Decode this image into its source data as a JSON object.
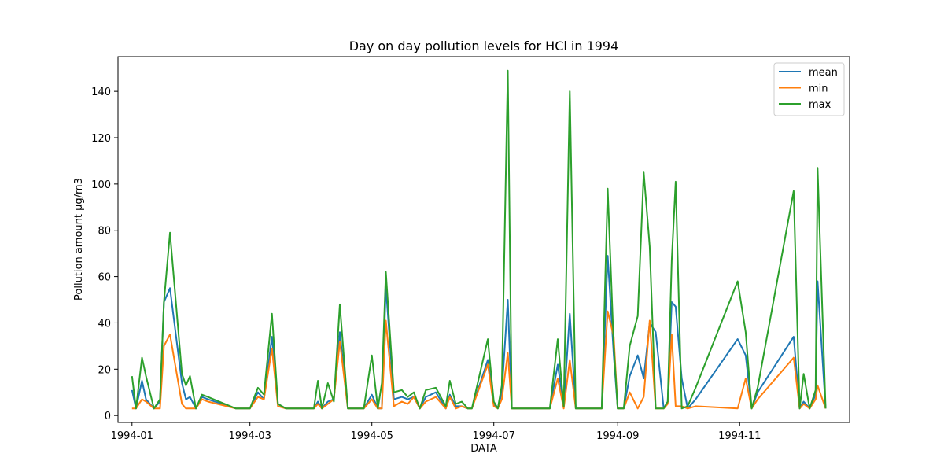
{
  "chart_data": {
    "type": "line",
    "title": "Day on day pollution levels for HCl in 1994",
    "xlabel": "DATA",
    "ylabel": "Pollution amount μg/m3",
    "ylim": [
      -3,
      155
    ],
    "xlim": [
      "1993-12-25",
      "1994-12-26"
    ],
    "x_ticks": [
      "1994-01",
      "1994-03",
      "1994-05",
      "1994-07",
      "1994-09",
      "1994-11"
    ],
    "y_ticks": [
      0,
      20,
      40,
      60,
      80,
      100,
      120,
      140
    ],
    "grid": false,
    "legend": "top-right",
    "x": [
      "1994-01-01",
      "1994-01-03",
      "1994-01-06",
      "1994-01-08",
      "1994-01-12",
      "1994-01-15",
      "1994-01-17",
      "1994-01-20",
      "1994-01-26",
      "1994-01-28",
      "1994-01-30",
      "1994-02-02",
      "1994-02-05",
      "1994-02-08",
      "1994-02-22",
      "1994-03-01",
      "1994-03-05",
      "1994-03-08",
      "1994-03-12",
      "1994-03-15",
      "1994-03-19",
      "1994-04-02",
      "1994-04-04",
      "1994-04-06",
      "1994-04-09",
      "1994-04-12",
      "1994-04-15",
      "1994-04-19",
      "1994-04-23",
      "1994-04-27",
      "1994-05-01",
      "1994-05-04",
      "1994-05-06",
      "1994-05-08",
      "1994-05-12",
      "1994-05-16",
      "1994-05-19",
      "1994-05-22",
      "1994-05-25",
      "1994-05-28",
      "1994-06-02",
      "1994-06-07",
      "1994-06-09",
      "1994-06-12",
      "1994-06-15",
      "1994-06-18",
      "1994-06-20",
      "1994-06-28",
      "1994-07-01",
      "1994-07-03",
      "1994-07-05",
      "1994-07-08",
      "1994-07-10",
      "1994-07-12",
      "1994-07-20",
      "1994-07-23",
      "1994-07-29",
      "1994-08-02",
      "1994-08-05",
      "1994-08-08",
      "1994-08-11",
      "1994-08-15",
      "1994-08-24",
      "1994-08-27",
      "1994-08-30",
      "1994-09-01",
      "1994-09-04",
      "1994-09-07",
      "1994-09-11",
      "1994-09-14",
      "1994-09-17",
      "1994-09-20",
      "1994-09-24",
      "1994-09-26",
      "1994-09-28",
      "1994-09-30",
      "1994-10-03",
      "1994-10-06",
      "1994-10-10",
      "1994-10-31",
      "1994-11-04",
      "1994-11-07",
      "1994-11-10",
      "1994-11-28",
      "1994-12-01",
      "1994-12-03",
      "1994-12-06",
      "1994-12-09",
      "1994-12-10",
      "1994-12-14"
    ],
    "series": [
      {
        "name": "mean",
        "color": "#1f77b4",
        "values": [
          11,
          3,
          15,
          7,
          3,
          6,
          49,
          55,
          14,
          7,
          8,
          3,
          8,
          7,
          3,
          3,
          10,
          7,
          34,
          5,
          3,
          3,
          6,
          3,
          6,
          7,
          36,
          3,
          3,
          3,
          9,
          3,
          3,
          56,
          7,
          8,
          7,
          8,
          3,
          8,
          10,
          3,
          9,
          4,
          4,
          3,
          3,
          24,
          5,
          3,
          10,
          50,
          3,
          3,
          3,
          3,
          3,
          22,
          4,
          44,
          3,
          3,
          3,
          69,
          26,
          3,
          3,
          17,
          26,
          16,
          40,
          36,
          3,
          6,
          49,
          47,
          16,
          3,
          7,
          33,
          26,
          3,
          10,
          34,
          3,
          6,
          3,
          9,
          58,
          3
        ]
      },
      {
        "name": "min",
        "color": "#ff7f0e",
        "values": [
          3,
          3,
          7,
          6,
          3,
          3,
          30,
          35,
          5,
          3,
          3,
          3,
          7,
          6,
          3,
          3,
          8,
          7,
          29,
          4,
          3,
          3,
          5,
          3,
          5,
          7,
          32,
          3,
          3,
          3,
          7,
          3,
          3,
          41,
          4,
          6,
          5,
          8,
          3,
          6,
          8,
          3,
          8,
          3,
          4,
          3,
          3,
          22,
          4,
          3,
          7,
          27,
          3,
          3,
          3,
          3,
          3,
          16,
          3,
          24,
          3,
          3,
          3,
          45,
          34,
          3,
          3,
          10,
          3,
          8,
          41,
          3,
          3,
          5,
          35,
          4,
          4,
          3,
          4,
          3,
          16,
          3,
          7,
          25,
          3,
          5,
          3,
          7,
          13,
          3
        ]
      },
      {
        "name": "max",
        "color": "#2ca02c",
        "values": [
          17,
          3,
          25,
          17,
          3,
          7,
          49,
          79,
          18,
          13,
          17,
          3,
          9,
          8,
          3,
          3,
          12,
          9,
          44,
          5,
          3,
          3,
          15,
          3,
          14,
          6,
          48,
          3,
          3,
          3,
          26,
          3,
          14,
          62,
          10,
          11,
          8,
          10,
          3,
          11,
          12,
          4,
          15,
          5,
          6,
          3,
          3,
          33,
          6,
          3,
          13,
          149,
          3,
          3,
          3,
          3,
          3,
          33,
          4,
          140,
          3,
          3,
          3,
          98,
          30,
          3,
          3,
          30,
          43,
          105,
          73,
          3,
          3,
          6,
          67,
          101,
          3,
          4,
          12,
          58,
          36,
          3,
          12,
          97,
          3,
          18,
          3,
          11,
          107,
          3
        ]
      }
    ]
  }
}
